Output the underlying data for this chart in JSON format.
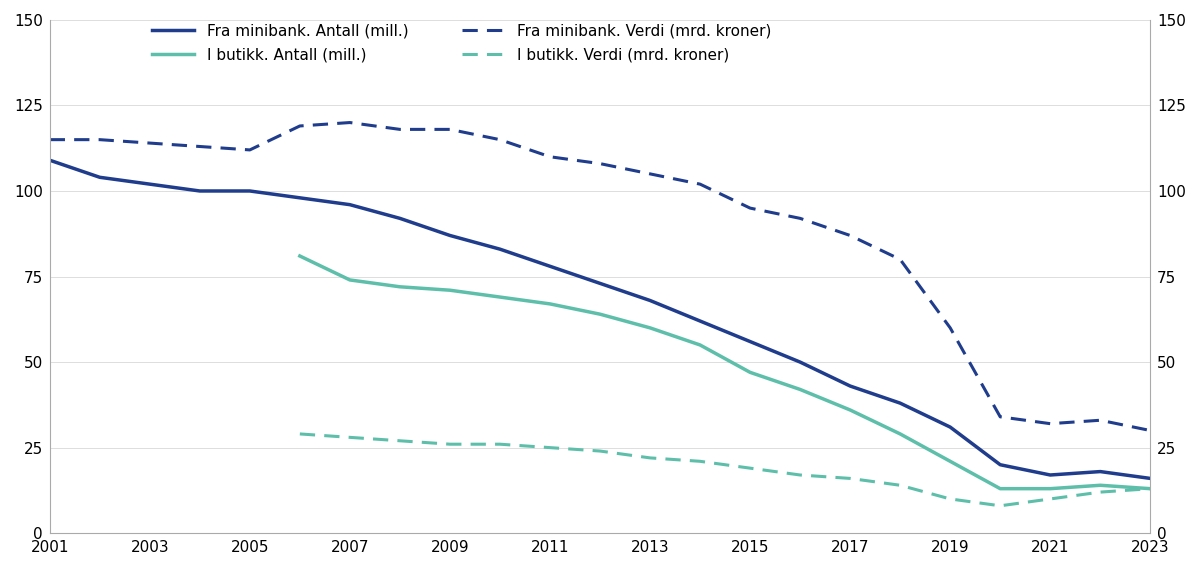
{
  "years": [
    2001,
    2002,
    2003,
    2004,
    2005,
    2006,
    2007,
    2008,
    2009,
    2010,
    2011,
    2012,
    2013,
    2014,
    2015,
    2016,
    2017,
    2018,
    2019,
    2020,
    2021,
    2022,
    2023
  ],
  "minibank_antall": [
    109,
    104,
    102,
    100,
    100,
    98,
    96,
    92,
    87,
    83,
    78,
    73,
    68,
    62,
    56,
    50,
    43,
    38,
    31,
    20,
    17,
    18,
    16
  ],
  "minibank_verdi": [
    115,
    115,
    114,
    113,
    112,
    119,
    120,
    118,
    118,
    115,
    110,
    108,
    105,
    102,
    95,
    92,
    87,
    80,
    60,
    34,
    32,
    33,
    30
  ],
  "butikk_antall": [
    null,
    null,
    null,
    null,
    null,
    81,
    74,
    72,
    71,
    69,
    67,
    64,
    60,
    55,
    47,
    42,
    36,
    29,
    21,
    13,
    13,
    14,
    13
  ],
  "butikk_verdi": [
    null,
    null,
    null,
    null,
    null,
    29,
    28,
    27,
    26,
    26,
    25,
    24,
    22,
    21,
    19,
    17,
    16,
    14,
    10,
    8,
    10,
    12,
    13
  ],
  "minibank_color": "#1f3d8c",
  "butikk_color": "#5dbfaa",
  "ylim": [
    0,
    150
  ],
  "yticks": [
    0,
    25,
    50,
    75,
    100,
    125,
    150
  ],
  "xticks": [
    2001,
    2003,
    2005,
    2007,
    2009,
    2011,
    2013,
    2015,
    2017,
    2019,
    2021,
    2023
  ],
  "legend_minibank_antall": "Fra minibank. Antall (mill.)",
  "legend_minibank_verdi": "Fra minibank. Verdi (mrd. kroner)",
  "legend_butikk_antall": "I butikk. Antall (mill.)",
  "legend_butikk_verdi": "I butikk. Verdi (mrd. kroner)",
  "linewidth_solid": 2.5,
  "linewidth_dashed": 2.2,
  "spine_color": "#aaaaaa",
  "grid_color": "#dddddd"
}
